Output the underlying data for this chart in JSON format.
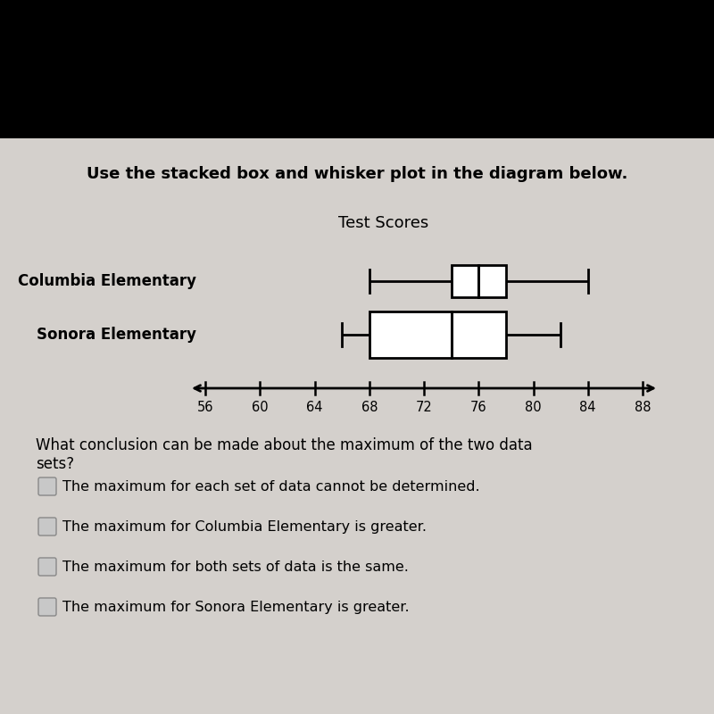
{
  "title": "Test Scores",
  "instruction": "Use the stacked box and whisker plot in the diagram below.",
  "question": "What conclusion can be made about the maximum of the two data\nsets?",
  "options": [
    "The maximum for each set of data cannot be determined.",
    "The maximum for Columbia Elementary is greater.",
    "The maximum for both sets of data is the same.",
    "The maximum for Sonora Elementary is greater."
  ],
  "labels": [
    "Columbia Elementary",
    "Sonora Elementary"
  ],
  "columbia": {
    "min": 68,
    "q1": 74,
    "median": 76,
    "q3": 78,
    "max": 84
  },
  "sonora": {
    "min": 66,
    "q1": 68,
    "median": 74,
    "q3": 78,
    "max": 82
  },
  "xticks": [
    56,
    60,
    64,
    68,
    72,
    76,
    80,
    84,
    88
  ],
  "v_min": 56,
  "v_max": 88,
  "black_bar_height": 155,
  "card_color": "#d4d0cc",
  "box_color": "#ffffff",
  "box_edge_color": "#000000",
  "text_color": "#000000",
  "title_fontsize": 13,
  "label_fontsize": 12,
  "option_fontsize": 12,
  "instruction_fontsize": 13
}
